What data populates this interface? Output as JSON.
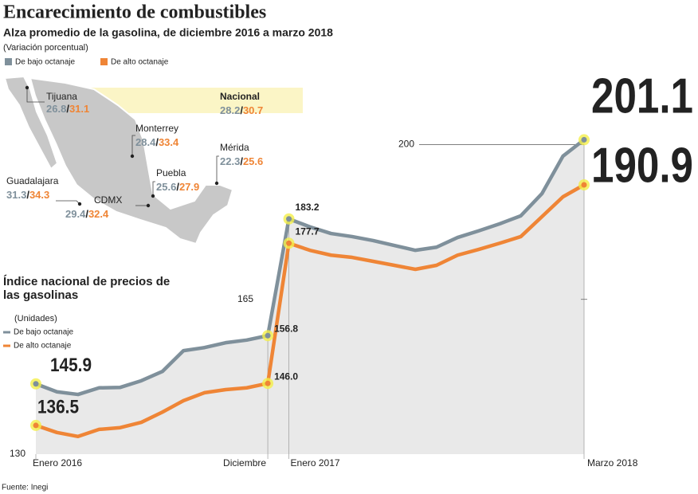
{
  "header": {
    "title": "Encarecimiento de combustibles",
    "subtitle": "Alza promedio de la gasolina, de diciembre 2016 a marzo 2018",
    "note": "(Variación porcentual)"
  },
  "map": {
    "separator": "/",
    "regions": [
      {
        "name": "Tijuana",
        "low": 26.8,
        "high": 31.1
      },
      {
        "name": "Nacional",
        "low": 28.2,
        "high": 30.7
      },
      {
        "name": "Monterrey",
        "low": 28.4,
        "high": 33.4
      },
      {
        "name": "Mérida",
        "low": 22.3,
        "high": 25.6
      },
      {
        "name": "Puebla",
        "low": 25.6,
        "high": 27.9
      },
      {
        "name": "Guadalajara",
        "low": 31.3,
        "high": 34.3
      },
      {
        "name": "CDMX",
        "low": 29.4,
        "high": 32.4
      }
    ]
  },
  "chart_data": {
    "type": "line",
    "title": "Índice nacional de precios de las gasolinas",
    "subtitle": "(Unidades)",
    "categories": [
      "Enero 2016",
      null,
      null,
      null,
      null,
      null,
      null,
      null,
      null,
      null,
      null,
      "Diciembre",
      "Enero 2017",
      null,
      null,
      null,
      null,
      null,
      null,
      null,
      null,
      null,
      null,
      null,
      null,
      null,
      "Marzo 2018"
    ],
    "series": [
      {
        "name": "De bajo octanaje",
        "color": "#7f909b",
        "values": [
          145.9,
          144.1,
          143.5,
          145.0,
          145.1,
          146.6,
          148.7,
          153.4,
          154.1,
          155.2,
          155.8,
          156.8,
          183.2,
          181.4,
          179.9,
          179.2,
          178.3,
          177.2,
          176.1,
          176.8,
          179.0,
          180.5,
          182.1,
          183.9,
          188.9,
          197.4,
          201.1
        ],
        "value_labels": [
          "145.9",
          null,
          null,
          null,
          null,
          null,
          null,
          null,
          null,
          null,
          null,
          "156.8",
          "183.2",
          null,
          null,
          null,
          null,
          null,
          null,
          null,
          null,
          null,
          null,
          null,
          null,
          null,
          "201.1"
        ]
      },
      {
        "name": "De alto octanaje",
        "color": "#ef8536",
        "values": [
          136.5,
          134.9,
          134.0,
          135.6,
          136.0,
          137.2,
          139.5,
          142.1,
          143.9,
          144.6,
          145.0,
          146.0,
          177.7,
          176.1,
          175.0,
          174.5,
          173.6,
          172.7,
          171.8,
          172.7,
          175.0,
          176.3,
          177.7,
          179.2,
          183.7,
          188.2,
          190.9
        ],
        "value_labels": [
          "136.5",
          null,
          null,
          null,
          null,
          null,
          null,
          null,
          null,
          null,
          null,
          "146.0",
          "177.7",
          null,
          null,
          null,
          null,
          null,
          null,
          null,
          null,
          null,
          null,
          null,
          null,
          null,
          "190.9"
        ]
      }
    ],
    "ylim": [
      130,
      210
    ],
    "yticks": [
      130,
      165,
      200
    ]
  },
  "source": "Fuente: Inegi"
}
